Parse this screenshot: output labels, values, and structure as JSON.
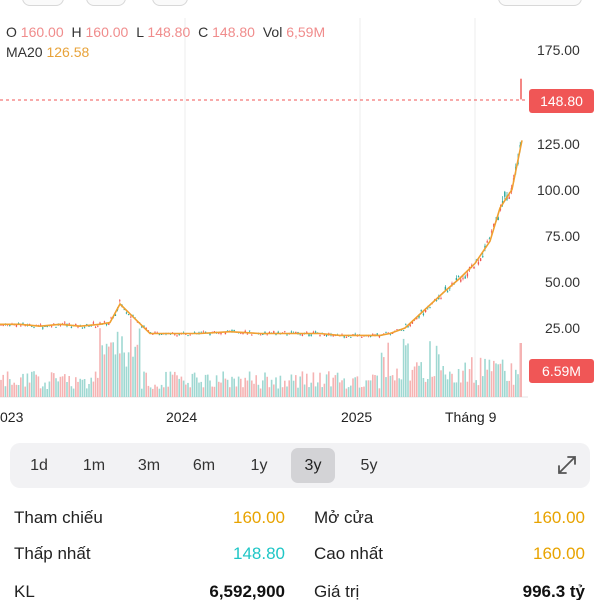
{
  "ohlc": {
    "o_label": "O",
    "o_value": "160.00",
    "h_label": "H",
    "h_value": "160.00",
    "l_label": "L",
    "l_value": "148.80",
    "c_label": "C",
    "c_value": "148.80",
    "vol_label": "Vol",
    "vol_value": "6,59M"
  },
  "ma": {
    "label": "MA20",
    "value": "126.58"
  },
  "y_ticks": [
    "175.00",
    "125.00",
    "100.00",
    "75.00",
    "50.00",
    "25.00"
  ],
  "price_tag": "148.80",
  "volume_tag": "6.59M",
  "x_ticks": [
    "023",
    "2024",
    "2025",
    "Tháng 9"
  ],
  "periods": [
    {
      "label": "1d",
      "active": false
    },
    {
      "label": "1m",
      "active": false
    },
    {
      "label": "3m",
      "active": false
    },
    {
      "label": "6m",
      "active": false
    },
    {
      "label": "1y",
      "active": false
    },
    {
      "label": "3y",
      "active": true
    },
    {
      "label": "5y",
      "active": false
    }
  ],
  "stats": {
    "ref_label": "Tham chiếu",
    "ref_value": "160.00",
    "open_label": "Mở cửa",
    "open_value": "160.00",
    "low_label": "Thấp nhất",
    "low_value": "148.80",
    "high_label": "Cao nhất",
    "high_value": "160.00",
    "vol_label": "KL",
    "vol_value": "6,592,900",
    "val_label": "Giá trị",
    "val_value": "996.3 tỷ"
  },
  "colors": {
    "up": "#26a69a",
    "down": "#ef5350",
    "ma_line": "#f0a030",
    "price_line": "#f05656",
    "gold": "#e8a300",
    "cyan": "#1fc6c6"
  },
  "chart_data": {
    "type": "line",
    "series": [
      {
        "name": "MA20",
        "values": [
          27,
          27,
          26,
          27,
          26,
          27,
          28,
          38,
          30,
          22,
          22,
          22,
          23,
          22,
          22,
          22,
          21,
          21,
          21,
          22,
          25,
          35,
          45,
          52,
          60,
          72,
          90,
          100,
          126.58
        ]
      }
    ],
    "last_close": 148.8,
    "last_volume": "6.59M",
    "ylim": [
      0,
      175
    ]
  }
}
